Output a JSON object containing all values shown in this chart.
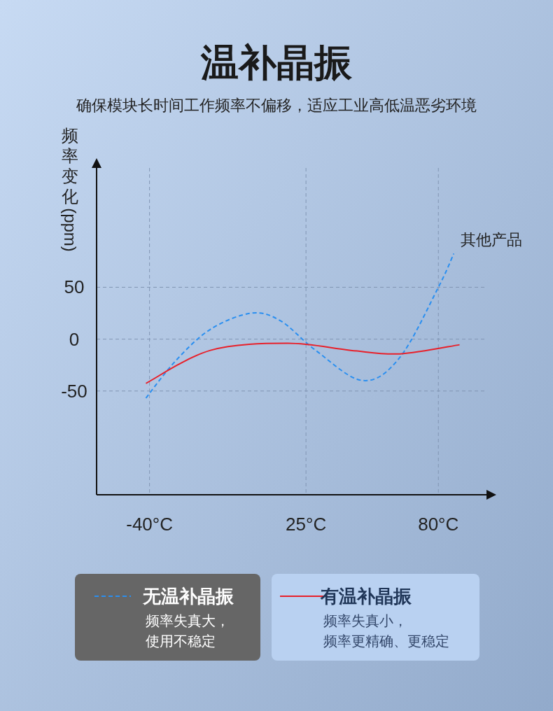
{
  "chart_data": {
    "type": "line",
    "title": "温补晶振",
    "subtitle": "确保模块长时间工作频率不偏移，适应工业高低温恶劣环境",
    "ylabel": "频率变化(ppm)",
    "xlim": [
      -62,
      100
    ],
    "ylim": [
      -150,
      165
    ],
    "xticks": [
      {
        "value": -40,
        "label": "-40°C"
      },
      {
        "value": 25,
        "label": "25°C"
      },
      {
        "value": 80,
        "label": "80°C"
      }
    ],
    "yticks": [
      50,
      0,
      -50
    ],
    "grid": true,
    "legend": "bottom",
    "series": [
      {
        "name": "无温补晶振",
        "color": "#2a8ff0",
        "line_style": "dashed",
        "x": [
          -41.5,
          -29.2,
          -14.7,
          2.2,
          14.5,
          29,
          48.6,
          64,
          80,
          86.4
        ],
        "values": [
          -56.8,
          -21,
          9.5,
          25,
          17.6,
          -10.8,
          -39.9,
          -17.6,
          50,
          82.4
        ]
      },
      {
        "name": "有温补晶振",
        "color": "#e8202a",
        "line_style": "solid",
        "x": [
          -41.5,
          -14.7,
          17.4,
          43.6,
          64,
          88.8
        ],
        "values": [
          -42.6,
          -10.8,
          -4,
          -10.8,
          -14.2,
          -5.4
        ]
      }
    ],
    "annotations": [
      {
        "text": "其他产品",
        "x": 86.4,
        "y": 82.4
      },
      "频率失真大，使用不稳定",
      "频率失真小，频率更精确、更稳定"
    ]
  }
}
